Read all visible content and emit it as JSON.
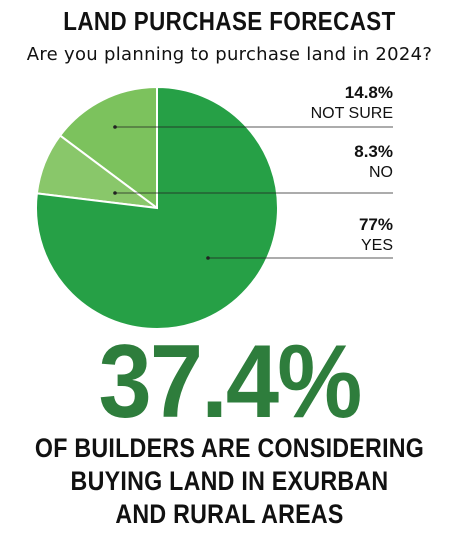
{
  "colors": {
    "big_number": "#2e7d3c",
    "text": "#111111"
  },
  "header": {
    "title": "LAND PURCHASE FORECAST",
    "subtitle": "Are you planning to purchase land in 2024?"
  },
  "chart_data": {
    "type": "pie",
    "title": "LAND PURCHASE FORECAST",
    "subtitle": "Are you planning to purchase land in 2024?",
    "slices": [
      {
        "label": "NOT SURE",
        "value": 14.8,
        "display": "14.8%",
        "color": "#7cc25d"
      },
      {
        "label": "NO",
        "value": 8.3,
        "display": "8.3%",
        "color": "#89c76a"
      },
      {
        "label": "YES",
        "value": 77,
        "display": "77%",
        "color": "#26a046"
      }
    ]
  },
  "stat": {
    "value": "37.4%",
    "caption_lines": [
      "OF BUILDERS ARE CONSIDERING",
      "BUYING LAND IN EXURBAN",
      "AND RURAL AREAS"
    ]
  }
}
